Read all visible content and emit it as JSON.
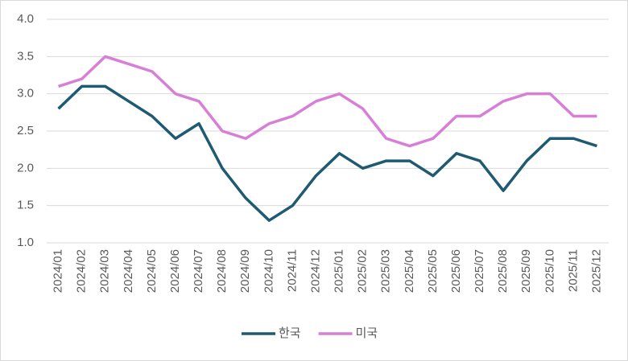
{
  "chart_data": {
    "type": "line",
    "categories": [
      "2024/01",
      "2024/02",
      "2024/03",
      "2024/04",
      "2024/05",
      "2024/06",
      "2024/07",
      "2024/08",
      "2024/09",
      "2024/10",
      "2024/11",
      "2024/12",
      "2025/01",
      "2025/02",
      "2025/03",
      "2025/04",
      "2025/05",
      "2025/06",
      "2025/07",
      "2025/08",
      "2025/09",
      "2025/10",
      "2025/11",
      "2025/12"
    ],
    "series": [
      {
        "name": "한국",
        "color": "#1f5a73",
        "values": [
          2.8,
          3.1,
          3.1,
          2.9,
          2.7,
          2.4,
          2.6,
          2.0,
          1.6,
          1.3,
          1.5,
          1.9,
          2.2,
          2.0,
          2.1,
          2.1,
          1.9,
          2.2,
          2.1,
          1.7,
          2.1,
          2.4,
          2.4,
          2.3
        ]
      },
      {
        "name": "미국",
        "color": "#d77fd7",
        "values": [
          3.1,
          3.2,
          3.5,
          3.4,
          3.3,
          3.0,
          2.9,
          2.5,
          2.4,
          2.6,
          2.7,
          2.9,
          3.0,
          2.8,
          2.4,
          2.3,
          2.4,
          2.7,
          2.7,
          2.9,
          3.0,
          3.0,
          2.7,
          2.7
        ]
      }
    ],
    "ylim": [
      1,
      4
    ],
    "yticks": [
      {
        "value": 1,
        "label": "1.0"
      },
      1.5,
      {
        "value": 2,
        "label": "2.0"
      },
      2.5,
      {
        "value": 3,
        "label": "3.0"
      },
      3.5,
      {
        "value": 4,
        "label": "4.0"
      }
    ],
    "grid": true,
    "legend": "bottom"
  }
}
